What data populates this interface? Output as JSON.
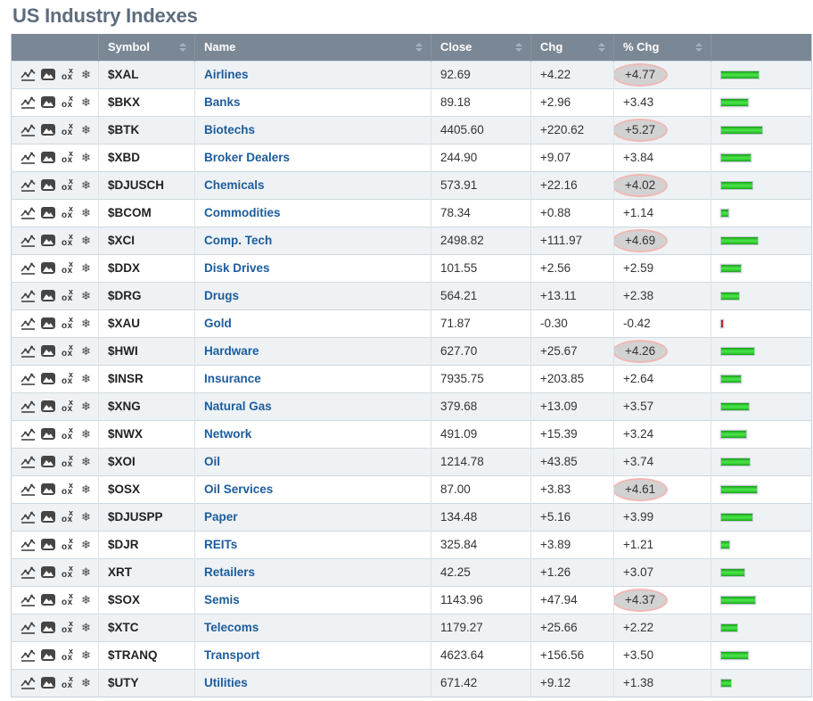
{
  "page": {
    "title": "US Industry Indexes"
  },
  "colors": {
    "header_bg": "#7a8795",
    "link_blue": "#1c5c9c",
    "positive_bar_green": "#2ecc2e",
    "negative_bar_red": "#cc1111",
    "highlight_fill": "#d2d2d2",
    "highlight_border": "#f0b8b3",
    "title_gray": "#5d6d7d"
  },
  "icons": {
    "row_tools": [
      "sharpchart-icon",
      "gallery-icon",
      "point-figure-icon",
      "seasonality-icon"
    ],
    "sort": "sort-arrows-icon",
    "seasonality_glyph": "❄",
    "point_figure_top": "x",
    "point_figure_bottom": "ox"
  },
  "table": {
    "columns": [
      {
        "label": "",
        "sortable": false
      },
      {
        "label": "Symbol",
        "sortable": true
      },
      {
        "label": "Name",
        "sortable": true
      },
      {
        "label": "Close",
        "sortable": true
      },
      {
        "label": "Chg",
        "sortable": true
      },
      {
        "label": "% Chg",
        "sortable": true
      },
      {
        "label": "",
        "sortable": false
      }
    ],
    "rows": [
      {
        "symbol": "$XAL",
        "name": "Airlines",
        "close": "92.69",
        "chg": "+4.22",
        "pct_chg": "+4.77",
        "highlight": true
      },
      {
        "symbol": "$BKX",
        "name": "Banks",
        "close": "89.18",
        "chg": "+2.96",
        "pct_chg": "+3.43",
        "highlight": false
      },
      {
        "symbol": "$BTK",
        "name": "Biotechs",
        "close": "4405.60",
        "chg": "+220.62",
        "pct_chg": "+5.27",
        "highlight": true
      },
      {
        "symbol": "$XBD",
        "name": "Broker Dealers",
        "close": "244.90",
        "chg": "+9.07",
        "pct_chg": "+3.84",
        "highlight": false
      },
      {
        "symbol": "$DJUSCH",
        "name": "Chemicals",
        "close": "573.91",
        "chg": "+22.16",
        "pct_chg": "+4.02",
        "highlight": true
      },
      {
        "symbol": "$BCOM",
        "name": "Commodities",
        "close": "78.34",
        "chg": "+0.88",
        "pct_chg": "+1.14",
        "highlight": false
      },
      {
        "symbol": "$XCI",
        "name": "Comp. Tech",
        "close": "2498.82",
        "chg": "+111.97",
        "pct_chg": "+4.69",
        "highlight": true
      },
      {
        "symbol": "$DDX",
        "name": "Disk Drives",
        "close": "101.55",
        "chg": "+2.56",
        "pct_chg": "+2.59",
        "highlight": false
      },
      {
        "symbol": "$DRG",
        "name": "Drugs",
        "close": "564.21",
        "chg": "+13.11",
        "pct_chg": "+2.38",
        "highlight": false
      },
      {
        "symbol": "$XAU",
        "name": "Gold",
        "close": "71.87",
        "chg": "-0.30",
        "pct_chg": "-0.42",
        "highlight": false
      },
      {
        "symbol": "$HWI",
        "name": "Hardware",
        "close": "627.70",
        "chg": "+25.67",
        "pct_chg": "+4.26",
        "highlight": true
      },
      {
        "symbol": "$INSR",
        "name": "Insurance",
        "close": "7935.75",
        "chg": "+203.85",
        "pct_chg": "+2.64",
        "highlight": false
      },
      {
        "symbol": "$XNG",
        "name": "Natural Gas",
        "close": "379.68",
        "chg": "+13.09",
        "pct_chg": "+3.57",
        "highlight": false
      },
      {
        "symbol": "$NWX",
        "name": "Network",
        "close": "491.09",
        "chg": "+15.39",
        "pct_chg": "+3.24",
        "highlight": false
      },
      {
        "symbol": "$XOI",
        "name": "Oil",
        "close": "1214.78",
        "chg": "+43.85",
        "pct_chg": "+3.74",
        "highlight": false
      },
      {
        "symbol": "$OSX",
        "name": "Oil Services",
        "close": "87.00",
        "chg": "+3.83",
        "pct_chg": "+4.61",
        "highlight": true
      },
      {
        "symbol": "$DJUSPP",
        "name": "Paper",
        "close": "134.48",
        "chg": "+5.16",
        "pct_chg": "+3.99",
        "highlight": false
      },
      {
        "symbol": "$DJR",
        "name": "REITs",
        "close": "325.84",
        "chg": "+3.89",
        "pct_chg": "+1.21",
        "highlight": false
      },
      {
        "symbol": "XRT",
        "name": "Retailers",
        "close": "42.25",
        "chg": "+1.26",
        "pct_chg": "+3.07",
        "highlight": false
      },
      {
        "symbol": "$SOX",
        "name": "Semis",
        "close": "1143.96",
        "chg": "+47.94",
        "pct_chg": "+4.37",
        "highlight": true
      },
      {
        "symbol": "$XTC",
        "name": "Telecoms",
        "close": "1179.27",
        "chg": "+25.66",
        "pct_chg": "+2.22",
        "highlight": false
      },
      {
        "symbol": "$TRANQ",
        "name": "Transport",
        "close": "4623.64",
        "chg": "+156.56",
        "pct_chg": "+3.50",
        "highlight": false
      },
      {
        "symbol": "$UTY",
        "name": "Utilities",
        "close": "671.42",
        "chg": "+9.12",
        "pct_chg": "+1.38",
        "highlight": false
      }
    ]
  }
}
